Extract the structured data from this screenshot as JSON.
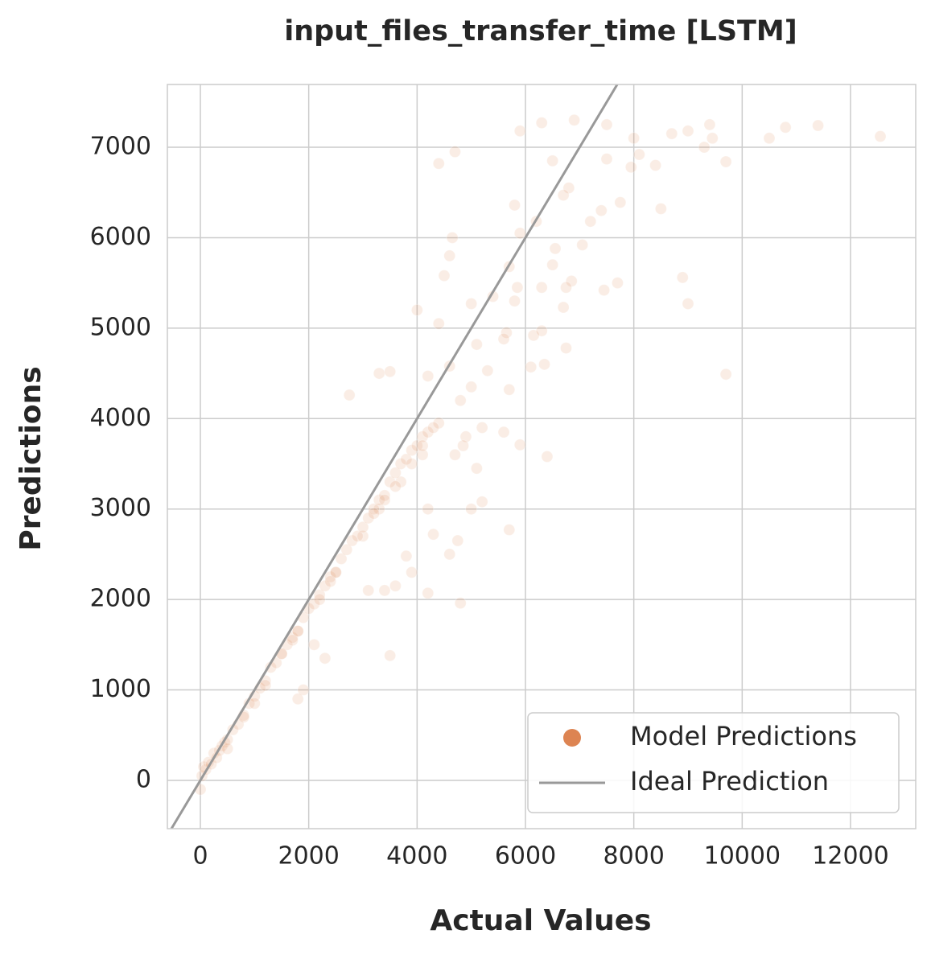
{
  "chart_data": {
    "type": "scatter",
    "title": "input_files_transfer_time [LSTM]",
    "x_label": "Actual Values",
    "y_label": "Predictions",
    "xlim": [
      -609,
      13203
    ],
    "ylim": [
      -534,
      7694
    ],
    "xticks": [
      0,
      2000,
      4000,
      6000,
      8000,
      10000,
      12000
    ],
    "yticks": [
      0,
      1000,
      2000,
      3000,
      4000,
      5000,
      6000,
      7000
    ],
    "grid": true,
    "legend": "lower right",
    "series": [
      {
        "name": "Model Predictions",
        "type": "scatter",
        "color": "#dd8452",
        "x": [
          5900,
          6300,
          6900,
          7500,
          8000,
          8700,
          9000,
          9400,
          9450,
          10500,
          10800,
          11400,
          12550,
          4700,
          4400,
          6500,
          7500,
          8100,
          8400,
          9700,
          9300,
          7950,
          5800,
          6800,
          7750,
          6700,
          7200,
          7400,
          8500,
          6200,
          4650,
          5900,
          7050,
          6550,
          4600,
          5700,
          6500,
          4500,
          5850,
          6300,
          6850,
          6750,
          7700,
          8900,
          7450,
          9000,
          5000,
          5400,
          5800,
          6700,
          4000,
          4400,
          5650,
          6150,
          6300,
          5100,
          5600,
          6100,
          6350,
          6750,
          9700,
          4600,
          5300,
          5700,
          3300,
          3500,
          4200,
          2750,
          4800,
          5000,
          4900,
          5200,
          5600,
          6400,
          5900,
          4850,
          5100,
          4700,
          5000,
          5200,
          5700,
          4600,
          4750,
          4300,
          4800,
          3800,
          3400,
          3600,
          3900,
          4200,
          3500,
          3100,
          2300,
          2100,
          1900,
          1800,
          3000,
          3300,
          3700,
          4200,
          4100,
          4400,
          0,
          30,
          60,
          100,
          150,
          200,
          250,
          300,
          350,
          400,
          450,
          500,
          600,
          700,
          800,
          900,
          1000,
          1100,
          1200,
          1300,
          1400,
          1500,
          1600,
          1700,
          1800,
          1900,
          2000,
          2100,
          2200,
          2300,
          2400,
          2500,
          2600,
          2700,
          2800,
          2900,
          3000,
          3100,
          3200,
          3300,
          3400,
          3500,
          3600,
          3700,
          3800,
          3900,
          4000,
          4100,
          4200,
          4300,
          500,
          800,
          1200,
          1500,
          1800,
          2200,
          2500,
          3200,
          3600,
          3900,
          4100,
          1000,
          1700,
          2400,
          3400
        ],
        "values": [
          7180,
          7270,
          7300,
          7250,
          7100,
          7150,
          7180,
          7250,
          7100,
          7100,
          7220,
          7240,
          7120,
          6950,
          6820,
          6850,
          6870,
          6920,
          6800,
          6840,
          7000,
          6780,
          6360,
          6550,
          6390,
          6470,
          6180,
          6300,
          6320,
          6180,
          6000,
          6050,
          5920,
          5880,
          5800,
          5680,
          5700,
          5580,
          5450,
          5450,
          5520,
          5450,
          5500,
          5560,
          5420,
          5270,
          5270,
          5350,
          5300,
          5230,
          5200,
          5050,
          4950,
          4920,
          4970,
          4820,
          4880,
          4570,
          4600,
          4780,
          4490,
          4580,
          4530,
          4320,
          4500,
          4520,
          4470,
          4260,
          4200,
          4350,
          3800,
          3900,
          3850,
          3580,
          3710,
          3700,
          3450,
          3600,
          3000,
          3080,
          2770,
          2500,
          2650,
          2720,
          1960,
          2480,
          2100,
          2150,
          2300,
          2070,
          1380,
          2100,
          1350,
          1500,
          1000,
          900,
          2700,
          3000,
          3300,
          3000,
          3600,
          3950,
          -100,
          50,
          150,
          120,
          200,
          180,
          300,
          250,
          330,
          380,
          420,
          450,
          560,
          620,
          720,
          850,
          930,
          1020,
          1100,
          1250,
          1300,
          1400,
          1500,
          1580,
          1650,
          1800,
          1900,
          1950,
          2050,
          2150,
          2250,
          2300,
          2450,
          2550,
          2650,
          2700,
          2800,
          2900,
          3000,
          3100,
          3150,
          3300,
          3400,
          3500,
          3550,
          3650,
          3700,
          3800,
          3850,
          3900,
          350,
          700,
          1050,
          1400,
          1650,
          2000,
          2300,
          2950,
          3250,
          3500,
          3700,
          850,
          1550,
          2200,
          3100
        ]
      },
      {
        "name": "Ideal Prediction",
        "type": "line",
        "color": "#999999",
        "x": [
          -534,
          7694
        ],
        "values": [
          -534,
          7694
        ]
      }
    ]
  }
}
